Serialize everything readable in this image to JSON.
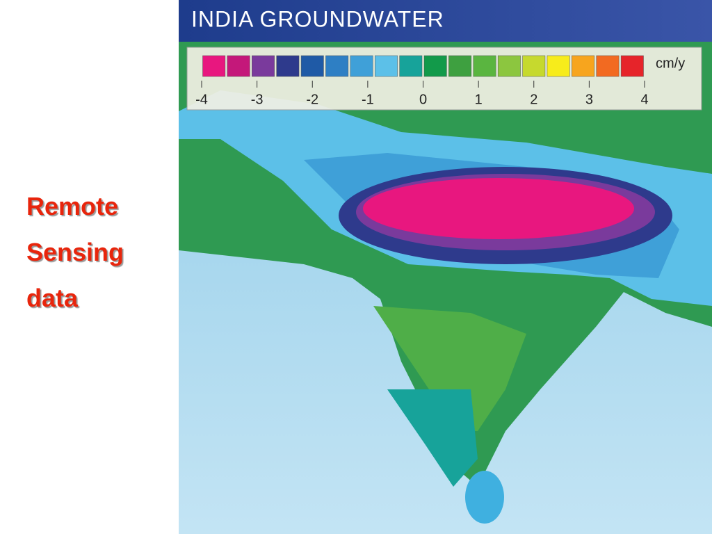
{
  "slide": {
    "text_lines": [
      "Remote",
      "Sensing",
      "data"
    ]
  },
  "map": {
    "title": "INDIA GROUNDWATER",
    "legend": {
      "unit": "cm/y",
      "range": [
        -4,
        4
      ],
      "ticks": [
        -4,
        -3,
        -2,
        -1,
        0,
        1,
        2,
        3,
        4
      ],
      "colors": [
        "#e8177f",
        "#c4187a",
        "#7a3a9c",
        "#2e3a8c",
        "#1f5aa6",
        "#2e7fc4",
        "#3fa0d8",
        "#5cc0e8",
        "#17a39a",
        "#129a4a",
        "#3ea040",
        "#5ab540",
        "#8cc63f",
        "#c6d92e",
        "#f7ec1b",
        "#f7a51e",
        "#f26a21",
        "#e6242a"
      ]
    }
  }
}
